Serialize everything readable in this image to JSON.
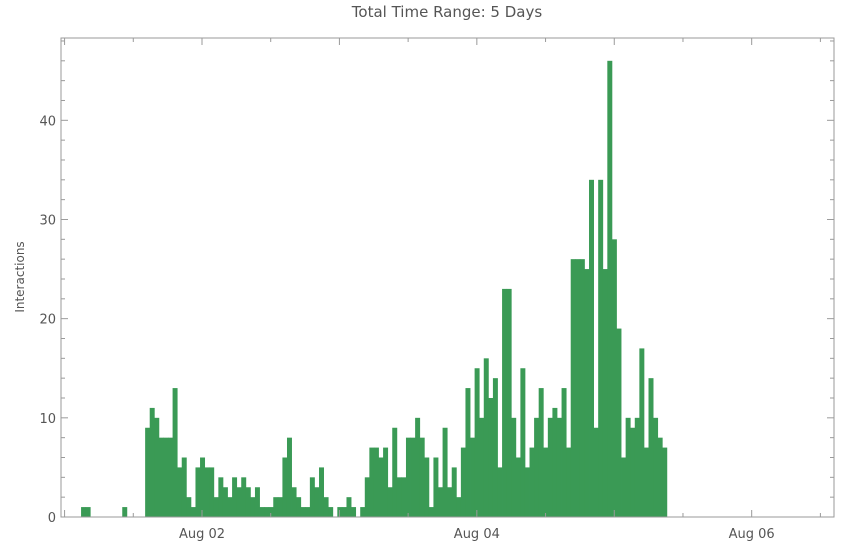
{
  "chart_data": {
    "type": "bar",
    "title": "Total Time Range: 5 Days",
    "xlabel": "",
    "ylabel": "Interactions",
    "ylim": [
      0,
      48.3
    ],
    "yticks": [
      0,
      10,
      20,
      30,
      40
    ],
    "bar_color": "#3a9a55",
    "time_range_days": [
      0.12,
      5.68
    ],
    "bin_days": 0.0333,
    "xticks": [
      {
        "day": 1.0,
        "label": "Aug 02"
      },
      {
        "day": 3.0,
        "label": "Aug 04"
      },
      {
        "day": 5.0,
        "label": "Aug 06"
      }
    ],
    "values": [
      1,
      1,
      0,
      0,
      0,
      0,
      0,
      0,
      0,
      1,
      0,
      0,
      0,
      0,
      9,
      11,
      10,
      8,
      8,
      8,
      13,
      5,
      6,
      2,
      1,
      5,
      6,
      5,
      5,
      2,
      4,
      3,
      2,
      4,
      3,
      4,
      3,
      2,
      3,
      1,
      1,
      1,
      2,
      2,
      6,
      8,
      3,
      2,
      1,
      1,
      4,
      3,
      5,
      2,
      1,
      0,
      1,
      1,
      2,
      1,
      0,
      1,
      4,
      7,
      7,
      6,
      7,
      3,
      9,
      4,
      4,
      8,
      8,
      10,
      8,
      6,
      1,
      6,
      3,
      9,
      3,
      5,
      2,
      7,
      13,
      8,
      15,
      10,
      16,
      12,
      14,
      5,
      23,
      23,
      10,
      6,
      15,
      5,
      7,
      10,
      13,
      7,
      10,
      11,
      10,
      13,
      7,
      26,
      26,
      26,
      25,
      34,
      9,
      34,
      25,
      46,
      28,
      19,
      6,
      10,
      9,
      10,
      17,
      7,
      14,
      10,
      8,
      7
    ]
  }
}
